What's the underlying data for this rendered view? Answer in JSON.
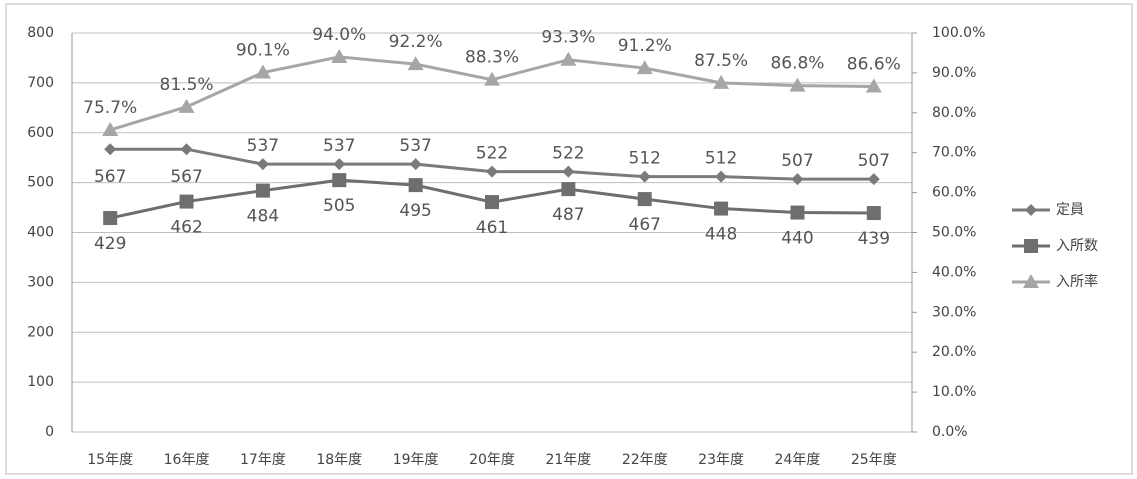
{
  "chart_data": {
    "type": "line",
    "categories": [
      "15年度",
      "16年度",
      "17年度",
      "18年度",
      "19年度",
      "20年度",
      "21年度",
      "22年度",
      "23年度",
      "24年度",
      "25年度"
    ],
    "series": [
      {
        "name": "定員",
        "color": "#7a7a7a",
        "marker": "diamond",
        "values": [
          567,
          567,
          537,
          537,
          537,
          522,
          522,
          512,
          512,
          507,
          507
        ]
      },
      {
        "name": "入所数",
        "color": "#6e6e6e",
        "marker": "square",
        "values": [
          429,
          462,
          484,
          505,
          495,
          461,
          487,
          467,
          448,
          440,
          439
        ]
      },
      {
        "name": "入所率",
        "color": "#a6a6a6",
        "marker": "triangle",
        "axis": "y2",
        "values": [
          75.7,
          81.5,
          90.1,
          94.0,
          92.2,
          88.3,
          93.3,
          91.2,
          87.5,
          86.8,
          86.6
        ],
        "value_labels": [
          "75.7%",
          "81.5%",
          "90.1%",
          "94.0%",
          "92.2%",
          "88.3%",
          "93.3%",
          "91.2%",
          "87.5%",
          "86.8%",
          "86.6%"
        ]
      }
    ],
    "ylim": [
      0,
      800
    ],
    "yticks": [
      0,
      100,
      200,
      300,
      400,
      500,
      600,
      700,
      800
    ],
    "y2lim": [
      0,
      100
    ],
    "y2ticks": [
      {
        "value": 0,
        "label": "0.0%"
      },
      {
        "value": 10,
        "label": "10.0%"
      },
      {
        "value": 20,
        "label": "20.0%"
      },
      {
        "value": 30,
        "label": "30.0%"
      },
      {
        "value": 40,
        "label": "40.0%"
      },
      {
        "value": 50,
        "label": "50.0%"
      },
      {
        "value": 60,
        "label": "60.0%"
      },
      {
        "value": 70,
        "label": "70.0%"
      },
      {
        "value": 80,
        "label": "80.0%"
      },
      {
        "value": 90,
        "label": "90.0%"
      },
      {
        "value": 100,
        "label": "100.0%"
      }
    ],
    "grid": true,
    "legend": "right"
  }
}
